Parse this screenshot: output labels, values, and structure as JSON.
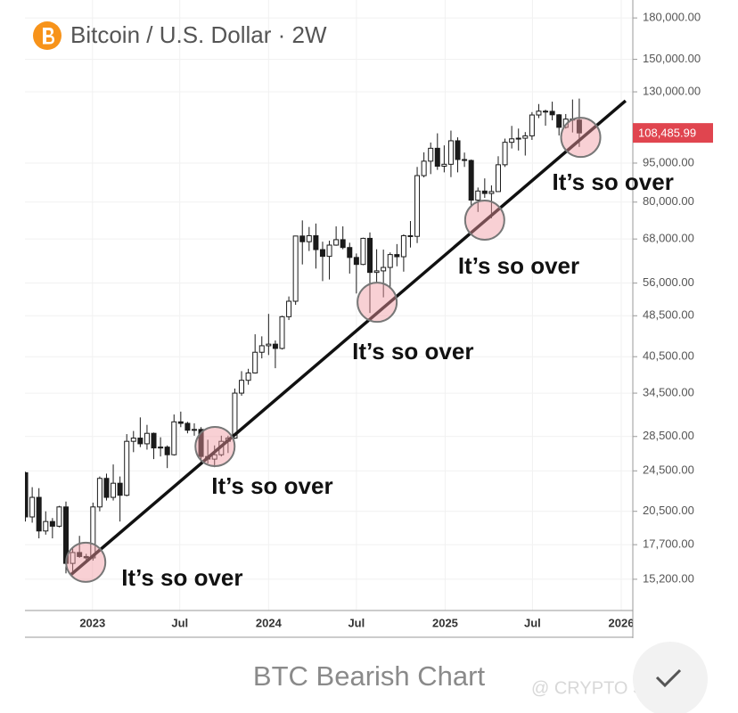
{
  "chart_data": {
    "type": "candlestick",
    "title": "Bitcoin / U.S. Dollar · 2W",
    "x": [
      "2022-08-15",
      "2022-08-29",
      "2022-09-12",
      "2022-09-26",
      "2022-10-10",
      "2022-10-24",
      "2022-11-07",
      "2022-11-21",
      "2022-12-05",
      "2022-12-19",
      "2023-01-02",
      "2023-01-16",
      "2023-01-30",
      "2023-02-13",
      "2023-02-27",
      "2023-03-13",
      "2023-03-27",
      "2023-04-10",
      "2023-04-24",
      "2023-05-08",
      "2023-05-22",
      "2023-06-05",
      "2023-06-19",
      "2023-07-03",
      "2023-07-17",
      "2023-07-31",
      "2023-08-14",
      "2023-08-28",
      "2023-09-11",
      "2023-09-25",
      "2023-10-09",
      "2023-10-23",
      "2023-11-06",
      "2023-11-20",
      "2023-12-04",
      "2023-12-18",
      "2024-01-01",
      "2024-01-15",
      "2024-01-29",
      "2024-02-12",
      "2024-02-26",
      "2024-03-11",
      "2024-03-25",
      "2024-04-08",
      "2024-04-22",
      "2024-05-06",
      "2024-05-20",
      "2024-06-03",
      "2024-06-17",
      "2024-07-01",
      "2024-07-15",
      "2024-07-29",
      "2024-08-12",
      "2024-08-26",
      "2024-09-09",
      "2024-09-23",
      "2024-10-07",
      "2024-10-21",
      "2024-11-04",
      "2024-11-18",
      "2024-12-02",
      "2024-12-16",
      "2024-12-30",
      "2025-01-13",
      "2025-01-27",
      "2025-02-10",
      "2025-02-24",
      "2025-03-10",
      "2025-03-24",
      "2025-04-07",
      "2025-04-21",
      "2025-05-05",
      "2025-05-19",
      "2025-06-02",
      "2025-06-16",
      "2025-06-30",
      "2025-07-14",
      "2025-07-28",
      "2025-08-11",
      "2025-08-25",
      "2025-09-08",
      "2025-09-22",
      "2025-10-06"
    ],
    "open": [
      24300,
      20000,
      21800,
      18800,
      19600,
      19200,
      20900,
      16300,
      17100,
      16800,
      16700,
      20900,
      23700,
      21800,
      23200,
      22000,
      27900,
      28300,
      27600,
      28900,
      27100,
      27200,
      26300,
      30400,
      30200,
      29300,
      29400,
      26100,
      25800,
      26300,
      27900,
      28300,
      34500,
      36500,
      37700,
      41300,
      42500,
      42800,
      42000,
      48300,
      51700,
      68900,
      67200,
      69000,
      64900,
      63000,
      66200,
      67800,
      65500,
      62700,
      60800,
      68200,
      58700,
      59100,
      60000,
      63500,
      62900,
      69000,
      68800,
      89900,
      95800,
      101400,
      93700,
      94500,
      104800,
      96500,
      96100,
      80700,
      84000,
      83100,
      83800,
      94300,
      104100,
      105700,
      106000,
      107100,
      117400,
      119400,
      119300,
      117500,
      111200,
      115300,
      114800
    ],
    "high": [
      24400,
      22800,
      22700,
      20500,
      19900,
      21000,
      21400,
      17400,
      18400,
      17000,
      21300,
      23900,
      24200,
      25200,
      23900,
      28800,
      29200,
      31000,
      30000,
      29000,
      28400,
      27400,
      31400,
      31800,
      30400,
      30200,
      29700,
      28100,
      27400,
      28600,
      28600,
      35200,
      38000,
      38400,
      44700,
      44300,
      48900,
      43500,
      48500,
      52800,
      69000,
      73800,
      71700,
      72800,
      67200,
      67500,
      71900,
      71900,
      66900,
      63800,
      68400,
      70000,
      65000,
      64900,
      64100,
      66500,
      69400,
      73600,
      93400,
      99600,
      104000,
      108300,
      102700,
      109600,
      106400,
      99500,
      96500,
      85300,
      88800,
      86100,
      97900,
      105800,
      111900,
      110600,
      108900,
      118900,
      123200,
      120200,
      124500,
      117900,
      117900,
      125700,
      126200
    ],
    "low": [
      19600,
      19500,
      18200,
      18500,
      18200,
      19100,
      15600,
      15500,
      16700,
      16400,
      16500,
      20500,
      21500,
      21500,
      19600,
      21900,
      26600,
      27200,
      26900,
      25800,
      26100,
      24800,
      26200,
      29700,
      28900,
      28600,
      25200,
      25300,
      24900,
      26100,
      26500,
      28200,
      34100,
      35800,
      37600,
      40200,
      40800,
      38500,
      41800,
      47600,
      50900,
      60800,
      64500,
      59700,
      56500,
      56900,
      66000,
      65000,
      58400,
      53500,
      60600,
      49100,
      56100,
      52600,
      54600,
      60300,
      58900,
      65500,
      66800,
      89200,
      90500,
      92200,
      91200,
      89300,
      91200,
      93400,
      78200,
      76600,
      81500,
      74500,
      83700,
      93400,
      101300,
      100400,
      98200,
      105200,
      115800,
      112000,
      114700,
      107300,
      110600,
      108700,
      102000
    ],
    "close": [
      20000,
      21800,
      18800,
      19600,
      19200,
      20900,
      16300,
      17100,
      16800,
      16700,
      20900,
      23700,
      21800,
      23200,
      22000,
      27900,
      28300,
      27600,
      28900,
      27100,
      27200,
      26300,
      30400,
      30200,
      29300,
      29400,
      26100,
      25800,
      26300,
      27900,
      28300,
      34500,
      36500,
      37700,
      41300,
      42500,
      42800,
      42000,
      48300,
      51700,
      68900,
      67200,
      69000,
      64900,
      63000,
      66200,
      67800,
      65500,
      62700,
      60800,
      68200,
      58700,
      59100,
      60000,
      63500,
      62900,
      69000,
      68800,
      89900,
      95800,
      101400,
      93700,
      94500,
      104800,
      96500,
      96100,
      80700,
      84000,
      83100,
      83800,
      94300,
      104100,
      105700,
      106000,
      107100,
      117400,
      119400,
      119300,
      117500,
      111200,
      115300,
      114800,
      108486
    ],
    "up_color": "#ffffff",
    "down_color": "#1a1a1a",
    "log_scale": true,
    "grid": true,
    "xlim": [
      "2022-08-14",
      "2026-01-25"
    ],
    "ylim": [
      13350,
      187300
    ],
    "xticks": [
      {
        "value": "2023-01-01",
        "label": "2023"
      },
      {
        "value": "2023-07-01",
        "label": "Jul"
      },
      {
        "value": "2024-01-01",
        "label": "2024"
      },
      {
        "value": "2024-07-01",
        "label": "Jul"
      },
      {
        "value": "2025-01-01",
        "label": "2025"
      },
      {
        "value": "2025-07-01",
        "label": "Jul"
      },
      {
        "value": "2026-01-01",
        "label": "2026"
      }
    ],
    "yticks": [
      {
        "value": 180000,
        "label": "180,000.00"
      },
      {
        "value": 150000,
        "label": "150,000.00"
      },
      {
        "value": 130000,
        "label": "130,000.00"
      },
      {
        "value": 95000,
        "label": "95,000.00"
      },
      {
        "value": 80000,
        "label": "80,000.00"
      },
      {
        "value": 68000,
        "label": "68,000.00"
      },
      {
        "value": 56000,
        "label": "56,000.00"
      },
      {
        "value": 48500,
        "label": "48,500.00"
      },
      {
        "value": 40500,
        "label": "40,500.00"
      },
      {
        "value": 34500,
        "label": "34,500.00"
      },
      {
        "value": 28500,
        "label": "28,500.00"
      },
      {
        "value": 24500,
        "label": "24,500.00"
      },
      {
        "value": 20500,
        "label": "20,500.00"
      },
      {
        "value": 17700,
        "label": "17,700.00"
      },
      {
        "value": 15200,
        "label": "15,200.00"
      }
    ],
    "last_price": {
      "value": 108485.99,
      "label": "108,485.99",
      "color": "#e0454f"
    },
    "trendline": {
      "x": [
        "2022-11-17",
        "2026-01-10"
      ],
      "y": [
        15500,
        125000
      ],
      "color": "#111111"
    },
    "annotations": [
      {
        "text": "It’s so over",
        "x": "2022-12-18",
        "y": 16380
      },
      {
        "text": "It’s so over",
        "x": "2023-09-12",
        "y": 27270
      },
      {
        "text": "It’s so over",
        "x": "2024-08-13",
        "y": 51480
      },
      {
        "text": "It’s so over",
        "x": "2025-03-24",
        "y": 73880
      },
      {
        "text": "It’s so over",
        "x": "2025-10-09",
        "y": 106400
      }
    ]
  },
  "caption": "BTC Bearish Chart",
  "watermark": "@ CRYPTO SHADZ"
}
